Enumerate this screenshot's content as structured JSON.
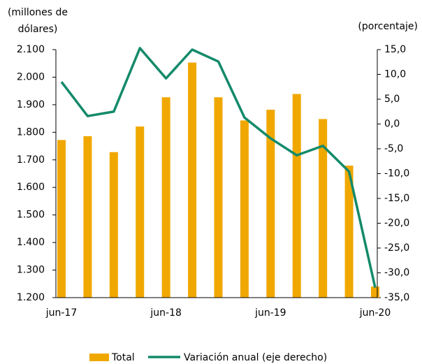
{
  "chart_data": {
    "type": "bar_line",
    "y_axis_label": "(millones de dólares)",
    "y2_axis_label": "(porcentaje)",
    "categories": [
      "jun-17",
      null,
      null,
      null,
      "jun-18",
      null,
      null,
      null,
      "jun-19",
      null,
      null,
      null,
      "jun-20"
    ],
    "series": [
      {
        "name": "Total",
        "type": "bar",
        "color": "#f0a800",
        "values": [
          1772,
          1786,
          1728,
          1821,
          1927,
          2053,
          1927,
          1843,
          1882,
          1939,
          1848,
          1679,
          1240
        ]
      },
      {
        "name": "Variación anual (eje derecho)",
        "type": "line",
        "axis": "y2",
        "color": "#138a6a",
        "values": [
          8.5,
          1.6,
          2.5,
          15.3,
          9.2,
          15.0,
          12.6,
          1.3,
          -2.9,
          -6.3,
          -4.4,
          -9.6,
          -33.0
        ]
      }
    ],
    "ylim": [
      1200,
      2100
    ],
    "yticks": [
      {
        "value": 1200,
        "label": "1.200"
      },
      {
        "value": 1300,
        "label": "1.300"
      },
      {
        "value": 1400,
        "label": "1.400"
      },
      {
        "value": 1500,
        "label": "1.500"
      },
      {
        "value": 1600,
        "label": "1.600"
      },
      {
        "value": 1700,
        "label": "1.700"
      },
      {
        "value": 1800,
        "label": "1.800"
      },
      {
        "value": 1900,
        "label": "1.900"
      },
      {
        "value": 2000,
        "label": "2.000"
      },
      {
        "value": 2100,
        "label": "2.100"
      }
    ],
    "y2lim": [
      -35,
      15
    ],
    "y2ticks": [
      {
        "value": 15,
        "label": "15,0"
      },
      {
        "value": 10,
        "label": "10,0"
      },
      {
        "value": 5,
        "label": "5,0"
      },
      {
        "value": 0,
        "label": "0,0"
      },
      {
        "value": -5,
        "label": "-5,0"
      },
      {
        "value": -10,
        "label": "-10,0"
      },
      {
        "value": -15,
        "label": "-15,0"
      },
      {
        "value": -20,
        "label": "-20,0"
      },
      {
        "value": -25,
        "label": "-25,0"
      },
      {
        "value": -30,
        "label": "-30,0"
      },
      {
        "value": -35,
        "label": "-35,0"
      }
    ],
    "legend": "bottom"
  }
}
